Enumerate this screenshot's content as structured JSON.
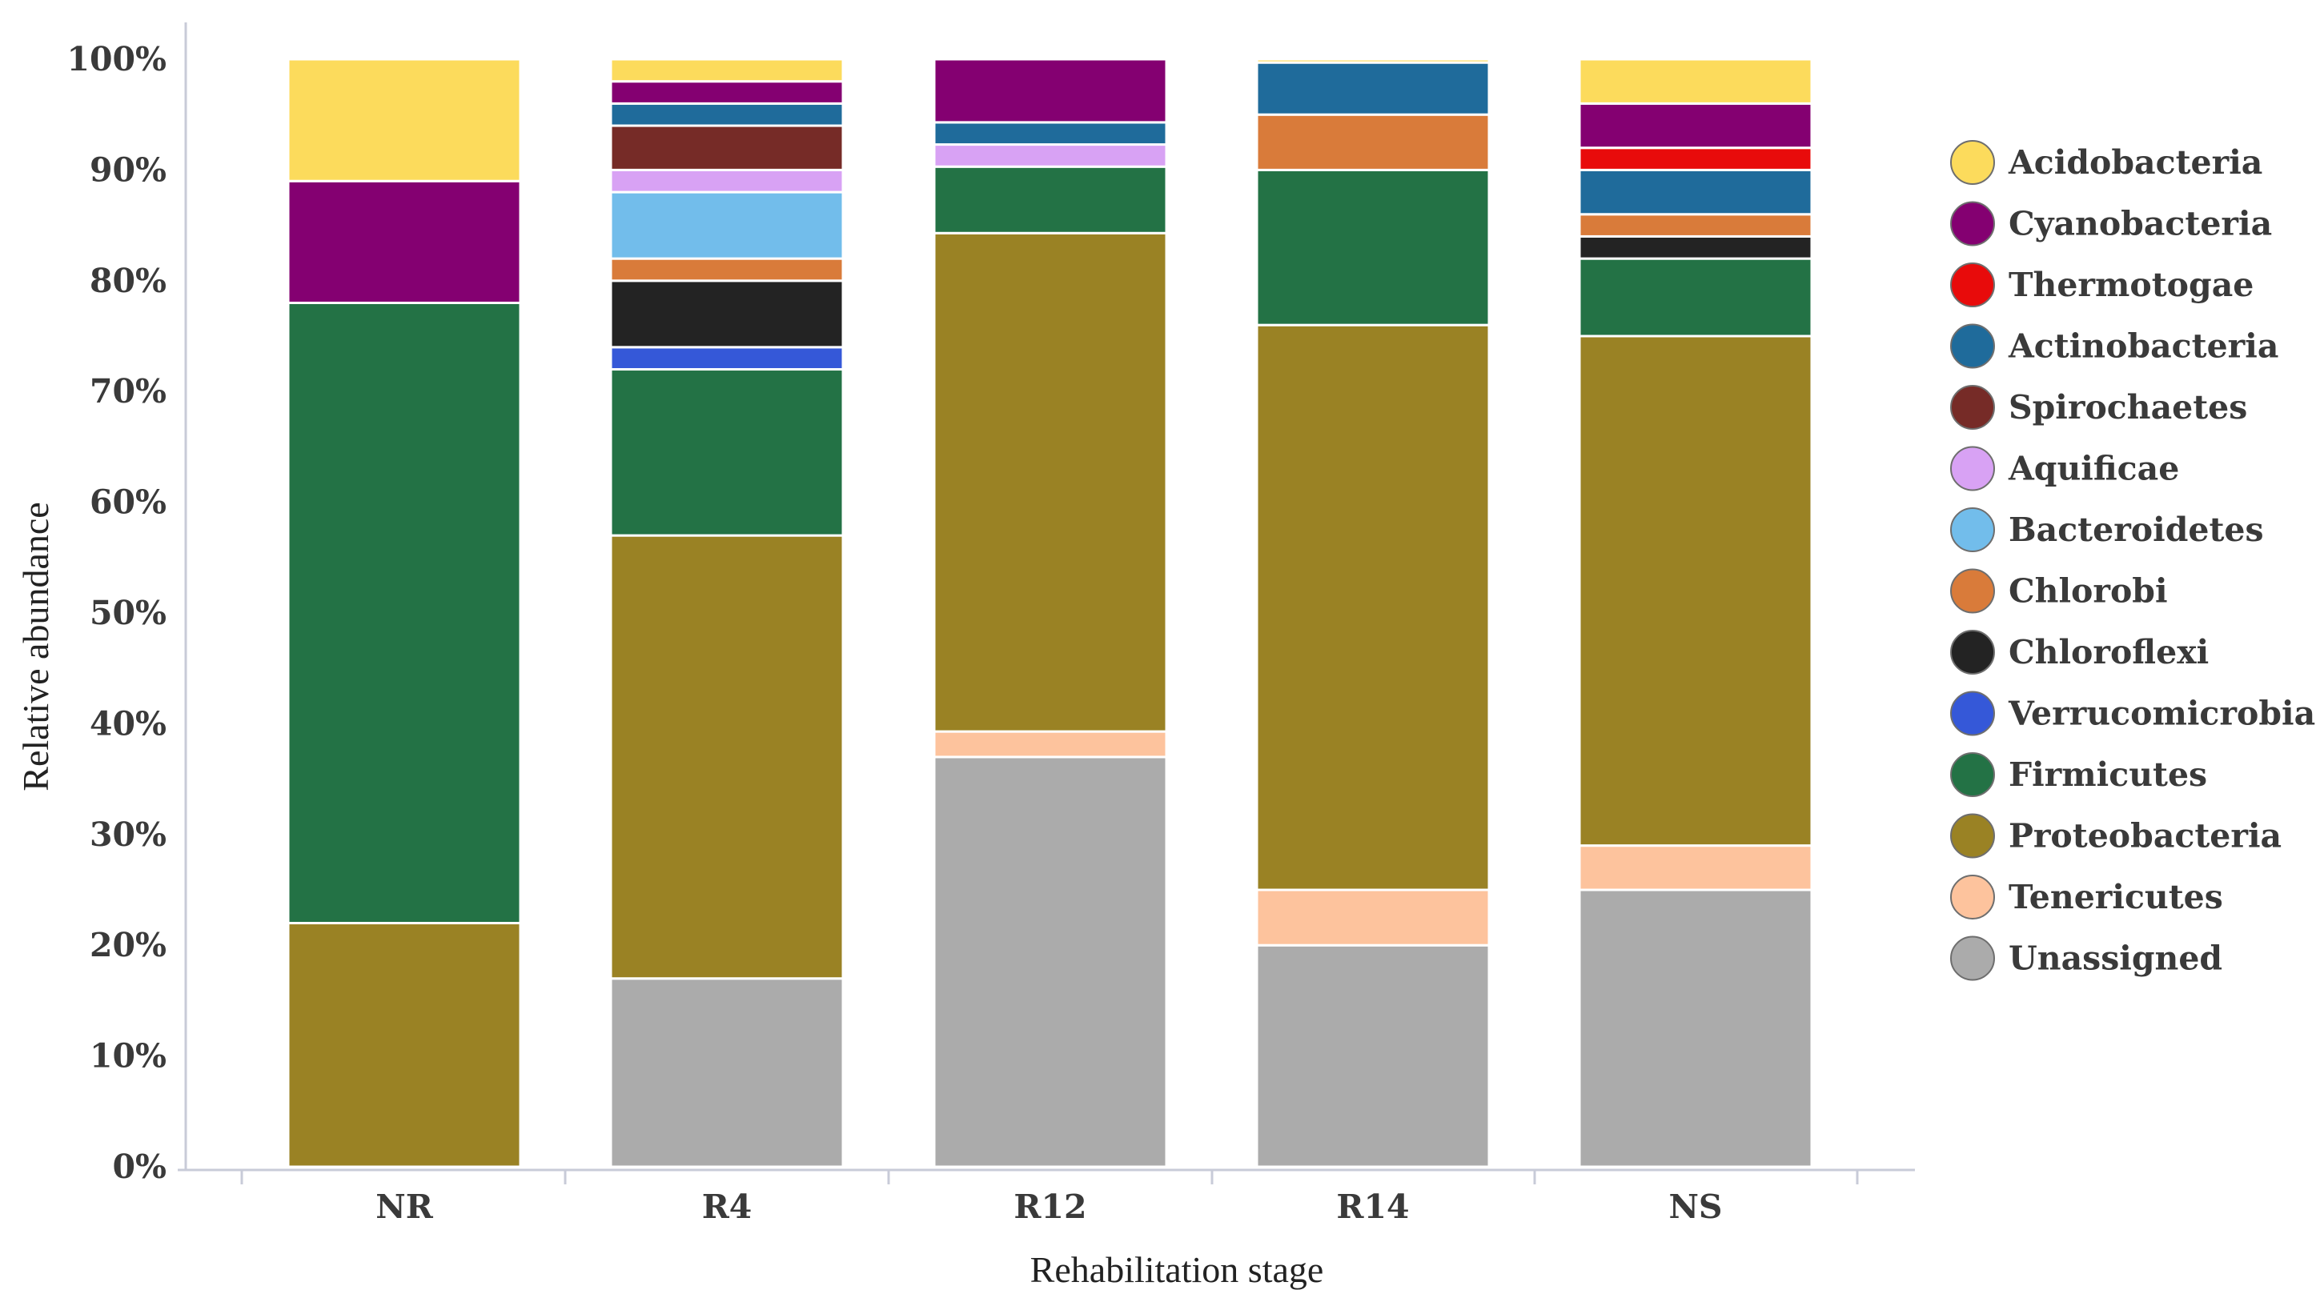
{
  "chart_data": {
    "type": "bar",
    "stacked": true,
    "title": "",
    "xlabel": "Rehabilitation stage",
    "ylabel": "Relative abundance",
    "ylim": [
      0,
      100
    ],
    "yticks": [
      "0%",
      "10%",
      "20%",
      "30%",
      "40%",
      "50%",
      "60%",
      "70%",
      "80%",
      "90%",
      "100%"
    ],
    "categories": [
      "NR",
      "R4",
      "R12",
      "R14",
      "NS"
    ],
    "legend_position": "right",
    "series": [
      {
        "name": "Unassigned",
        "color": "#ababab",
        "values": [
          0,
          17,
          37,
          20,
          25
        ]
      },
      {
        "name": "Tenericutes",
        "color": "#fdc39d",
        "values": [
          0,
          0,
          2.3,
          5,
          4
        ]
      },
      {
        "name": "Proteobacteria",
        "color": "#9a8224",
        "values": [
          22,
          40,
          45,
          51,
          46
        ]
      },
      {
        "name": "Firmicutes",
        "color": "#237245",
        "values": [
          56,
          15,
          6,
          14,
          7
        ]
      },
      {
        "name": "Verrucomicrobia",
        "color": "#3558d8",
        "values": [
          0,
          2,
          0,
          0,
          0
        ]
      },
      {
        "name": "Chloroflexi",
        "color": "#232323",
        "values": [
          0,
          6,
          0,
          0,
          2
        ]
      },
      {
        "name": "Chlorobi",
        "color": "#d97b3a",
        "values": [
          0,
          2,
          0,
          5,
          2
        ]
      },
      {
        "name": "Bacteroidetes",
        "color": "#72bdeb",
        "values": [
          0,
          6,
          0,
          0,
          0
        ]
      },
      {
        "name": "Aquificae",
        "color": "#d8a2f4",
        "values": [
          0,
          2,
          2,
          0,
          0
        ]
      },
      {
        "name": "Spirochaetes",
        "color": "#762b27",
        "values": [
          0,
          4,
          0,
          0,
          0
        ]
      },
      {
        "name": "Actinobacteria",
        "color": "#1f6b9b",
        "values": [
          0,
          2,
          2,
          4.7,
          4
        ]
      },
      {
        "name": "Thermotogae",
        "color": "#e80b0b",
        "values": [
          0,
          0,
          0,
          0,
          2
        ]
      },
      {
        "name": "Cyanobacteria",
        "color": "#840071",
        "values": [
          11,
          2,
          5.7,
          0,
          4
        ]
      },
      {
        "name": "Acidobacteria",
        "color": "#fcdb5c",
        "values": [
          11,
          2,
          0,
          0.3,
          4
        ]
      }
    ],
    "legend_order": [
      "Acidobacteria",
      "Cyanobacteria",
      "Thermotogae",
      "Actinobacteria",
      "Spirochaetes",
      "Aquificae",
      "Bacteroidetes",
      "Chlorobi",
      "Chloroflexi",
      "Verrucomicrobia",
      "Firmicutes",
      "Proteobacteria",
      "Tenericutes",
      "Unassigned"
    ]
  }
}
